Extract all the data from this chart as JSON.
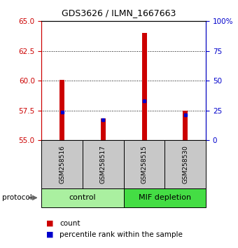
{
  "title": "GDS3626 / ILMN_1667663",
  "samples": [
    "GSM258516",
    "GSM258517",
    "GSM258515",
    "GSM258530"
  ],
  "groups": [
    {
      "label": "control",
      "indices": [
        0,
        1
      ],
      "color": "#aaf0a0"
    },
    {
      "label": "MIF depletion",
      "indices": [
        2,
        3
      ],
      "color": "#44dd44"
    }
  ],
  "bar_bottoms": [
    55,
    55,
    55,
    55
  ],
  "bar_tops": [
    60.05,
    56.85,
    64.0,
    57.5
  ],
  "percentile_values": [
    57.35,
    56.7,
    58.3,
    57.1
  ],
  "ylim_left": [
    55,
    65
  ],
  "ylim_right": [
    0,
    100
  ],
  "yticks_left": [
    55,
    57.5,
    60,
    62.5,
    65
  ],
  "yticks_right": [
    0,
    25,
    50,
    75,
    100
  ],
  "bar_color": "#cc0000",
  "percentile_color": "#0000cc",
  "bar_width": 0.12,
  "left_axis_color": "#cc0000",
  "right_axis_color": "#0000cc",
  "sample_box_color": "#c8c8c8",
  "legend_count_label": "count",
  "legend_percentile_label": "percentile rank within the sample",
  "protocol_label": "protocol",
  "background_color": "#ffffff",
  "title_fontsize": 9,
  "tick_fontsize": 7.5,
  "sample_fontsize": 6.5,
  "group_fontsize": 8,
  "legend_fontsize": 7.5
}
